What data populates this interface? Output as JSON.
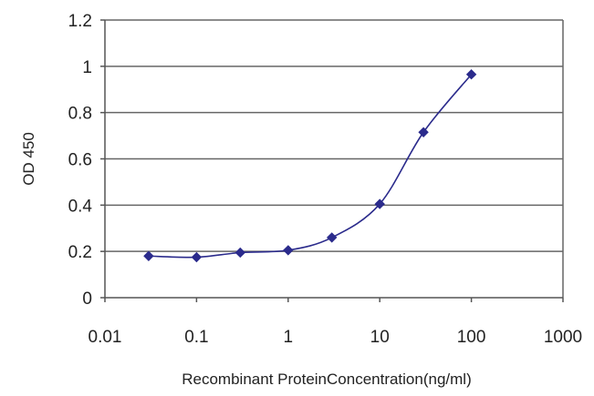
{
  "chart_data": {
    "type": "line",
    "title": "",
    "xlabel": "Recombinant ProteinConcentration(ng/ml)",
    "ylabel": "OD 450",
    "xscale": "log",
    "xlim": [
      0.01,
      1000
    ],
    "ylim": [
      0,
      1.2
    ],
    "x_ticks": [
      0.01,
      0.1,
      1,
      10,
      100,
      1000
    ],
    "x_tick_labels": [
      "0.01",
      "0.1",
      "1",
      "10",
      "100",
      "1000"
    ],
    "y_ticks": [
      0,
      0.2,
      0.4,
      0.6,
      0.8,
      1,
      1.2
    ],
    "y_tick_labels": [
      "0",
      "0.2",
      "0.4",
      "0.6",
      "0.8",
      "1",
      "1.2"
    ],
    "grid": "horizontal",
    "legend": "none",
    "series": [
      {
        "x": [
          0.03,
          0.1,
          0.3,
          1,
          3,
          10,
          30,
          100
        ],
        "values": [
          0.18,
          0.175,
          0.195,
          0.205,
          0.26,
          0.405,
          0.715,
          0.965
        ],
        "color": "#2b2b8c",
        "marker": "diamond"
      }
    ]
  },
  "colors": {
    "axis": "#555555",
    "grid": "#666666",
    "series": "#2b2b8c"
  }
}
